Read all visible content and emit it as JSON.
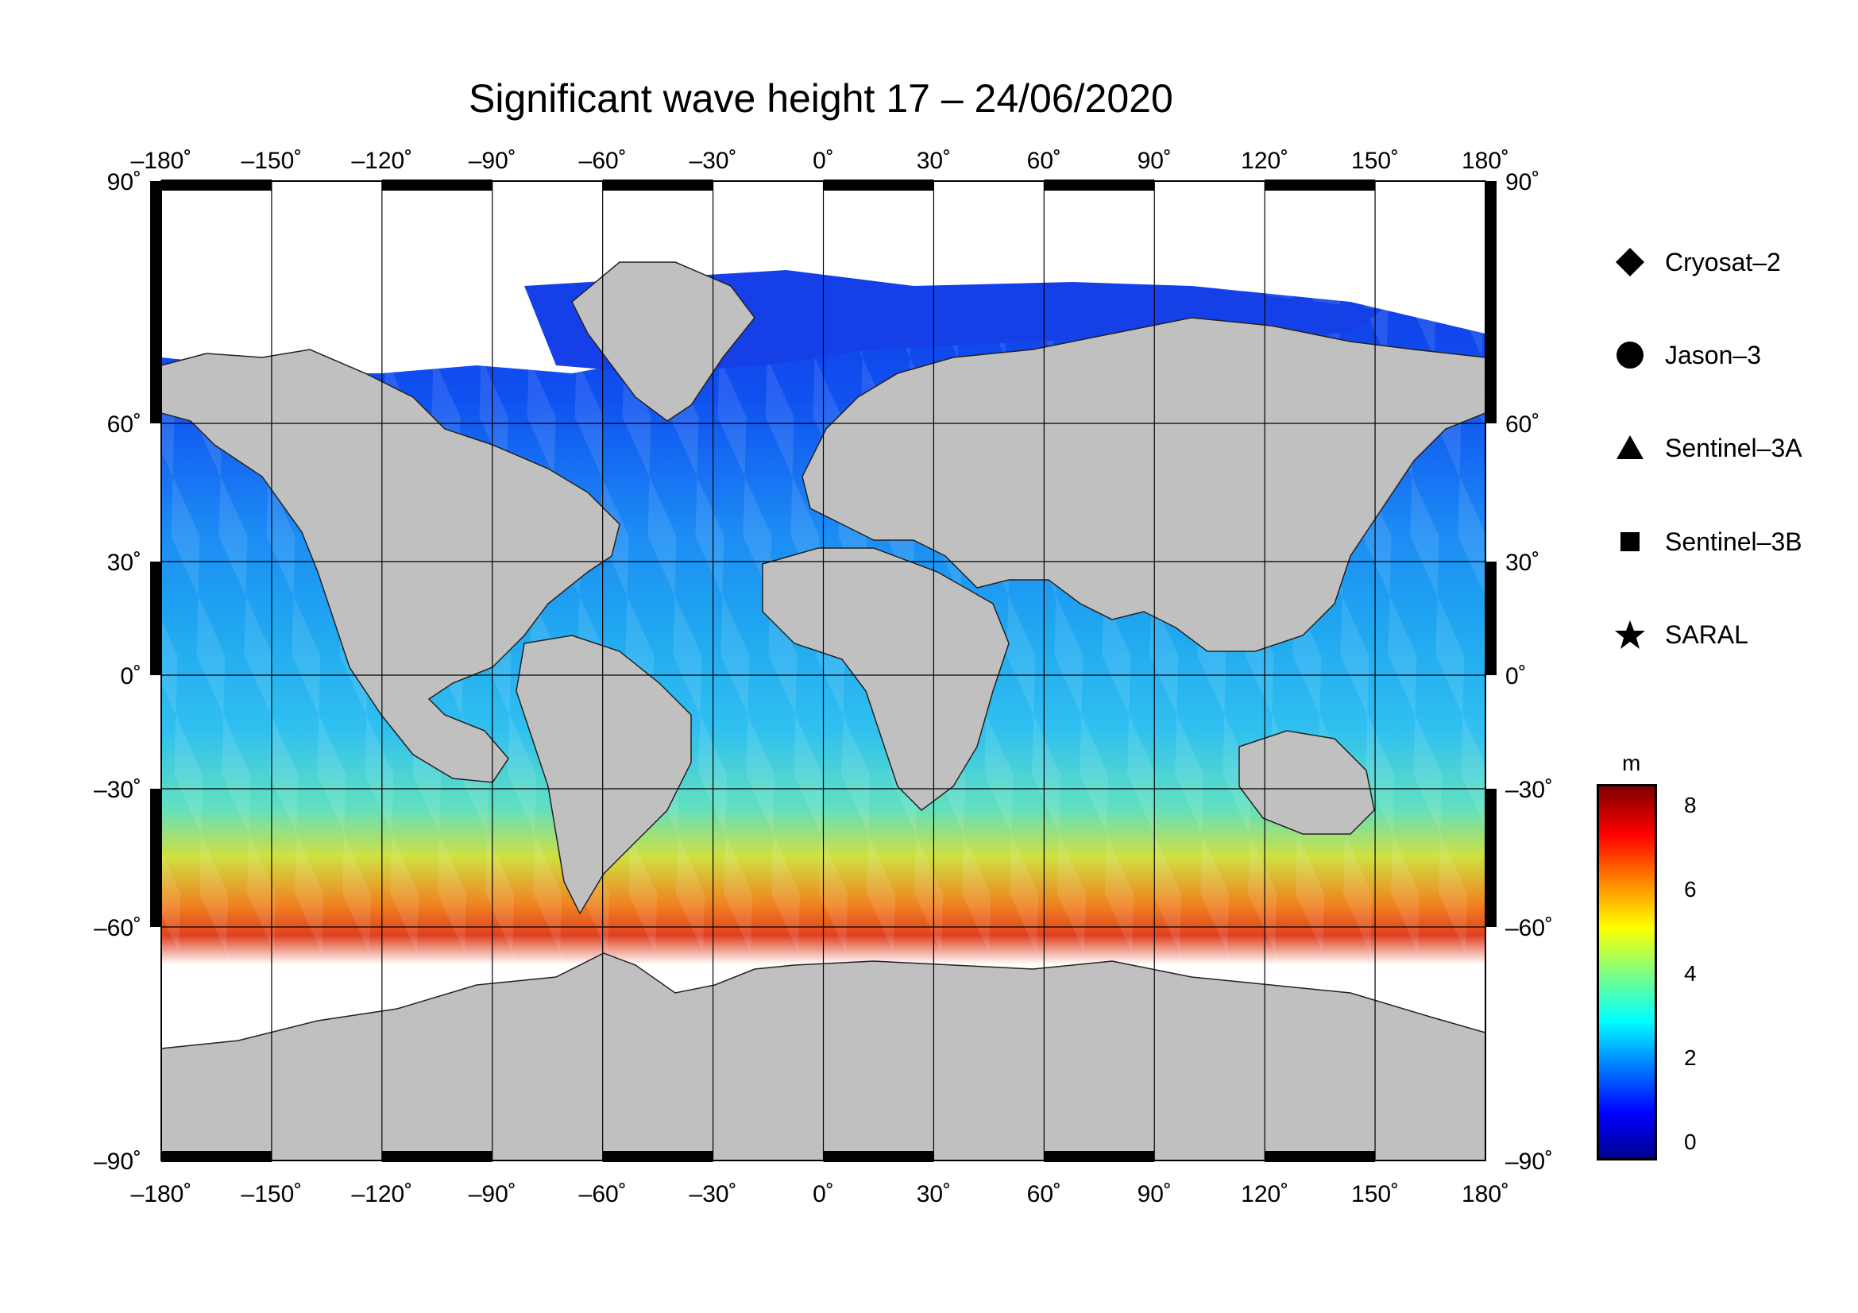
{
  "title": "Significant wave height 17 – 24/06/2020",
  "lon_labels": [
    "–180˚",
    "–150˚",
    "–120˚",
    "–90˚",
    "–60˚",
    "–30˚",
    "0˚",
    "30˚",
    "60˚",
    "90˚",
    "120˚",
    "150˚",
    "180˚"
  ],
  "lat_labels": [
    "90˚",
    "60˚",
    "30˚",
    "0˚",
    "–30˚",
    "–60˚",
    "–90˚"
  ],
  "legend": [
    {
      "label": "Cryosat–2",
      "icon": "diamond-icon"
    },
    {
      "label": "Jason–3",
      "icon": "circle-icon"
    },
    {
      "label": "Sentinel–3A",
      "icon": "triangle-icon"
    },
    {
      "label": "Sentinel–3B",
      "icon": "square-icon"
    },
    {
      "label": "SARAL",
      "icon": "star-icon"
    }
  ],
  "colorbar": {
    "unit": "m",
    "ticks": [
      "8",
      "6",
      "4",
      "2",
      "0"
    ],
    "colors": [
      "#00008f",
      "#0000ff",
      "#0080ff",
      "#00ffff",
      "#80ff80",
      "#ffff00",
      "#ff8000",
      "#ff0000",
      "#800000"
    ]
  },
  "colors": {
    "land": "#c0c0c0",
    "ice": "#ffffff",
    "frame": "#000000"
  }
}
